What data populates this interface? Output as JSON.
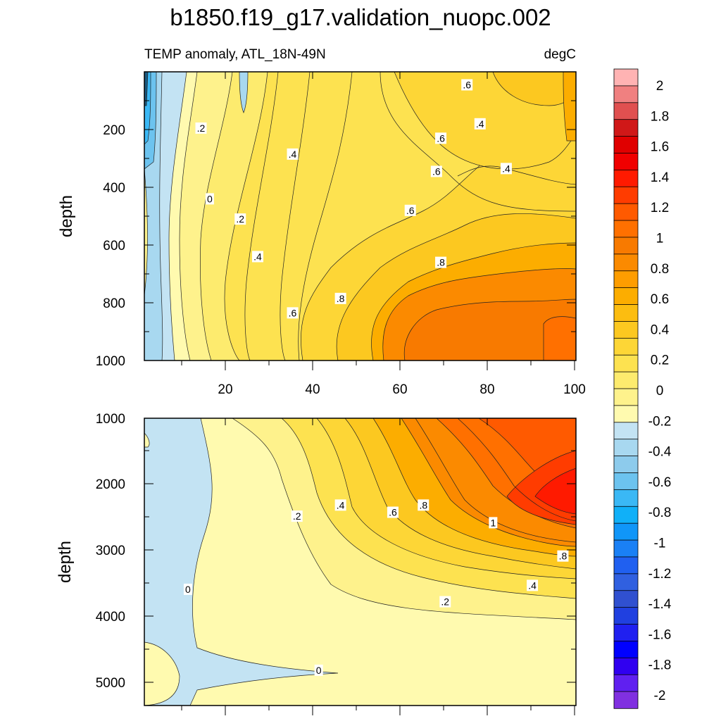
{
  "title": "b1850.f19_g17.validation_nuopc.002",
  "chart_data": [
    {
      "type": "heatmap",
      "panel": "upper",
      "subtitle_left": "TEMP anomaly, ATL_18N-49N",
      "subtitle_right": "degC",
      "ylabel": "depth",
      "xlabel": "",
      "xlim": [
        1,
        100
      ],
      "ylim": [
        0,
        1000
      ],
      "y_reversed": true,
      "x_ticks": [
        "20",
        "40",
        "60",
        "80",
        "100"
      ],
      "y_ticks": [
        "200",
        "400",
        "600",
        "800",
        "1000"
      ],
      "contour_labels": [
        {
          "text": ".2",
          "x": 14,
          "y": 195
        },
        {
          "text": "0",
          "x": 16,
          "y": 440
        },
        {
          "text": ".2",
          "x": 23,
          "y": 510
        },
        {
          "text": ".4",
          "x": 27,
          "y": 640
        },
        {
          "text": ".4",
          "x": 35,
          "y": 285
        },
        {
          "text": ".6",
          "x": 35,
          "y": 835
        },
        {
          "text": ".8",
          "x": 46,
          "y": 785
        },
        {
          "text": ".6",
          "x": 62,
          "y": 480
        },
        {
          "text": ".6",
          "x": 68,
          "y": 345
        },
        {
          "text": ".6",
          "x": 69,
          "y": 230
        },
        {
          "text": ".8",
          "x": 69,
          "y": 660
        },
        {
          "text": ".6",
          "x": 75,
          "y": 45
        },
        {
          "text": ".4",
          "x": 78,
          "y": 180
        },
        {
          "text": ".4",
          "x": 84,
          "y": 335
        }
      ]
    },
    {
      "type": "heatmap",
      "panel": "lower",
      "ylabel": "depth",
      "xlabel": "",
      "xlim": [
        1,
        100
      ],
      "ylim": [
        1000,
        5400
      ],
      "y_reversed": true,
      "y_ticks": [
        "1000",
        "2000",
        "3000",
        "4000",
        "5000"
      ],
      "contour_labels": [
        {
          "text": ".2",
          "x": 36,
          "y": 2500
        },
        {
          "text": ".4",
          "x": 46,
          "y": 2330
        },
        {
          "text": ".6",
          "x": 58,
          "y": 2440
        },
        {
          "text": ".8",
          "x": 65,
          "y": 2330
        },
        {
          "text": "1",
          "x": 81,
          "y": 2600
        },
        {
          "text": ".8",
          "x": 97,
          "y": 3110
        },
        {
          "text": ".4",
          "x": 90,
          "y": 3560
        },
        {
          "text": ".2",
          "x": 70,
          "y": 3810
        },
        {
          "text": "0",
          "x": 11,
          "y": 3620
        },
        {
          "text": "0",
          "x": 41,
          "y": 4860
        }
      ]
    }
  ],
  "colorbar": {
    "labels": [
      "2",
      "1.8",
      "1.6",
      "1.4",
      "1.2",
      "1",
      "0.8",
      "0.6",
      "0.4",
      "0.2",
      "0",
      "-0.2",
      "-0.4",
      "-0.6",
      "-0.8",
      "-1",
      "-1.2",
      "-1.4",
      "-1.6",
      "-1.8",
      "-2"
    ],
    "colors": [
      "#ffb3b3",
      "#f08080",
      "#e05050",
      "#d01818",
      "#e00000",
      "#f00000",
      "#ff1a00",
      "#ff3c00",
      "#ff5a00",
      "#ff7000",
      "#f87a00",
      "#fb8a00",
      "#fe9d00",
      "#fcad00",
      "#fcbd10",
      "#fcc820",
      "#fdd636",
      "#fde250",
      "#fdeb6e",
      "#fef28c",
      "#fffaaf",
      "#c3e3f3",
      "#a8d8f0",
      "#8dcbec",
      "#6cc3ef",
      "#3ab8f5",
      "#10b0f8",
      "#1096f8",
      "#1a80f5",
      "#2060f0",
      "#3060e0",
      "#3050d0",
      "#2040e0",
      "#2020f0",
      "#0000ff",
      "#3000f0",
      "#6020f0",
      "#8030e0"
    ]
  }
}
